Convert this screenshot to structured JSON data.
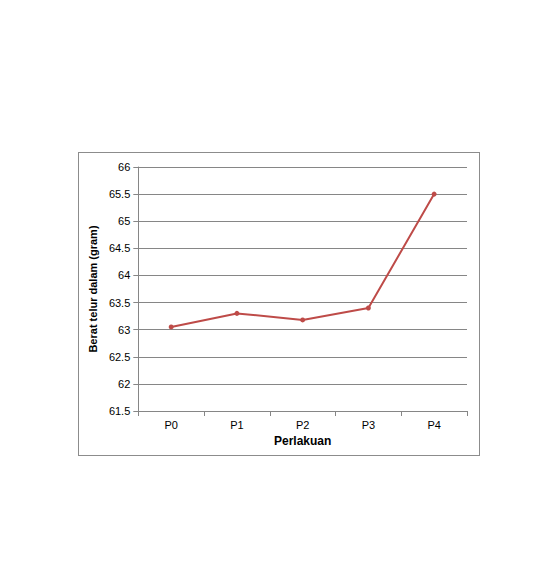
{
  "chart_data": {
    "type": "line",
    "x_label": "Perlakuan",
    "y_label": "Berat telur dalam (gram)",
    "categories": [
      "P0",
      "P1",
      "P2",
      "P3",
      "P4"
    ],
    "values": [
      63.05,
      63.3,
      63.18,
      63.4,
      65.5
    ],
    "color": "#be4b48",
    "marker": "circle",
    "ylim": [
      61.5,
      66
    ],
    "yticks": [
      61.5,
      62,
      62.5,
      63,
      63.5,
      64,
      64.5,
      65,
      65.5,
      66
    ],
    "grid": true
  }
}
